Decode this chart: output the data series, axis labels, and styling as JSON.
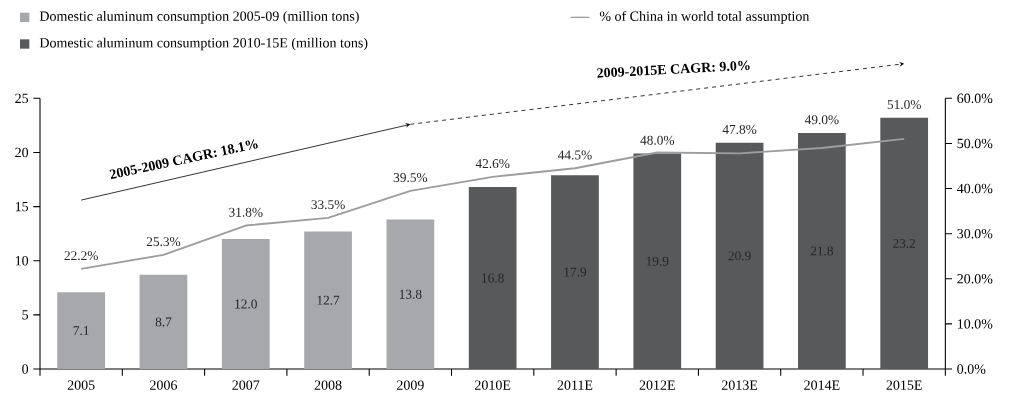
{
  "chart_data": {
    "type": "bar",
    "categories": [
      "2005",
      "2006",
      "2007",
      "2008",
      "2009",
      "2010E",
      "2011E",
      "2012E",
      "2013E",
      "2014E",
      "2015E"
    ],
    "series": [
      {
        "name": "Domestic aluminum consumption 2005-09 (million tons)",
        "color": "#a7a8ab",
        "values": [
          7.1,
          8.7,
          12.0,
          12.7,
          13.8,
          null,
          null,
          null,
          null,
          null,
          null
        ],
        "value_labels": [
          "7.1",
          "8.7",
          "12.0",
          "12.7",
          "13.8",
          null,
          null,
          null,
          null,
          null,
          null
        ]
      },
      {
        "name": "Domestic aluminum consumption 2010-15E (million tons)",
        "color": "#58595b",
        "values": [
          null,
          null,
          null,
          null,
          null,
          16.8,
          17.9,
          19.9,
          20.9,
          21.8,
          23.2
        ],
        "value_labels": [
          null,
          null,
          null,
          null,
          null,
          "16.8",
          "17.9",
          "19.9",
          "20.9",
          "21.8",
          "23.2"
        ]
      },
      {
        "name": "% of China in world total assumption",
        "type": "line",
        "axis": "y2",
        "color": "#9d9d9f",
        "values": [
          22.2,
          25.3,
          31.8,
          33.5,
          39.5,
          42.6,
          44.5,
          48.0,
          47.8,
          49.0,
          51.0
        ],
        "value_labels": [
          "22.2%",
          "25.3%",
          "31.8%",
          "33.5%",
          "39.5%",
          "42.6%",
          "44.5%",
          "48.0%",
          "47.8%",
          "49.0%",
          "51.0%"
        ]
      }
    ],
    "ylim": [
      0,
      25
    ],
    "yticks": [
      0,
      5,
      10,
      15,
      20,
      25
    ],
    "y2lim": [
      0,
      60
    ],
    "y2ticks": [
      {
        "value": 0,
        "label": "0.0%"
      },
      {
        "value": 10,
        "label": "10.0%"
      },
      {
        "value": 20,
        "label": "20.0%"
      },
      {
        "value": 30,
        "label": "30.0%"
      },
      {
        "value": 40,
        "label": "40.0%"
      },
      {
        "value": 50,
        "label": "50.0%"
      },
      {
        "value": 60,
        "label": "60.0%"
      }
    ],
    "legend": "top",
    "annotations": [
      "2005-2009 CAGR: 18.1%",
      "2009-2015E CAGR: 9.0%"
    ]
  }
}
